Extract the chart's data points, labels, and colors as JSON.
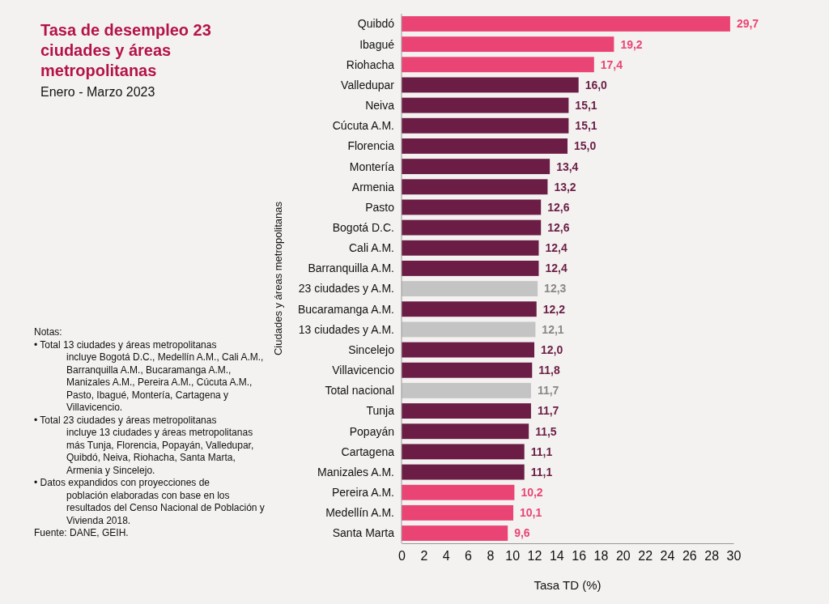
{
  "chart_data": {
    "type": "bar",
    "orientation": "horizontal",
    "title": "Tasa de desempleo 23 ciudades y áreas metropolitanas",
    "subtitle": "Enero - Marzo 2023",
    "xlabel": "Tasa TD (%)",
    "ylabel": "Ciudades y áreas metropolitanas",
    "categories": [
      "Quibdó",
      "Ibagué",
      "Riohacha",
      "Valledupar",
      "Neiva",
      "Cúcuta A.M.",
      "Florencia",
      "Montería",
      "Armenia",
      "Pasto",
      "Bogotá D.C.",
      "Cali A.M.",
      "Barranquilla A.M.",
      "23 ciudades y A.M.",
      "Bucaramanga A.M.",
      "13 ciudades y A.M.",
      "Sincelejo",
      "Villavicencio",
      "Total nacional",
      "Tunja",
      "Popayán",
      "Cartagena",
      "Manizales A.M.",
      "Pereira A.M.",
      "Medellín A.M.",
      "Santa Marta"
    ],
    "values": [
      29.7,
      19.2,
      17.4,
      16.0,
      15.1,
      15.1,
      15.0,
      13.4,
      13.2,
      12.6,
      12.6,
      12.4,
      12.4,
      12.3,
      12.2,
      12.1,
      12.0,
      11.8,
      11.7,
      11.7,
      11.5,
      11.1,
      11.1,
      10.2,
      10.1,
      9.6
    ],
    "value_labels": [
      "29,7",
      "19,2",
      "17,4",
      "16,0",
      "15,1",
      "15,1",
      "15,0",
      "13,4",
      "13,2",
      "12,6",
      "12,6",
      "12,4",
      "12,4",
      "12,3",
      "12,2",
      "12,1",
      "12,0",
      "11,8",
      "11,7",
      "11,7",
      "11,5",
      "11,1",
      "11,1",
      "10,2",
      "10,1",
      "9,6"
    ],
    "colors": [
      "#ea4474",
      "#ea4474",
      "#ea4474",
      "#6b1d45",
      "#6b1d45",
      "#6b1d45",
      "#6b1d45",
      "#6b1d45",
      "#6b1d45",
      "#6b1d45",
      "#6b1d45",
      "#6b1d45",
      "#6b1d45",
      "#c4c4c4",
      "#6b1d45",
      "#c4c4c4",
      "#6b1d45",
      "#6b1d45",
      "#c4c4c4",
      "#6b1d45",
      "#6b1d45",
      "#6b1d45",
      "#6b1d45",
      "#ea4474",
      "#ea4474",
      "#ea4474"
    ],
    "xlim": [
      0,
      30
    ],
    "xticks": [
      0,
      2,
      4,
      6,
      8,
      10,
      12,
      14,
      16,
      18,
      20,
      22,
      24,
      26,
      28,
      30
    ],
    "grid": false,
    "annotations": [
      "Notas:",
      "• Total 13 ciudades y áreas metropolitanas incluye Bogotá D.C., Medellín A.M., Cali A.M., Barranquilla A.M., Bucaramanga A.M., Manizales A.M., Pereira A.M., Cúcuta A.M., Pasto, Ibagué, Montería, Cartagena y Villavicencio.",
      "• Total 23 ciudades y áreas metropolitanas incluye 13 ciudades y áreas metropolitanas más Tunja, Florencia, Popayán, Valledupar, Quibdó, Neiva, Riohacha, Santa Marta, Armenia y Sincelejo.",
      "• Datos expandidos con proyecciones de población elaboradas con base en los resultados del Censo Nacional de Población y Vivienda 2018.",
      "Fuente: DANE, GEIH."
    ]
  }
}
